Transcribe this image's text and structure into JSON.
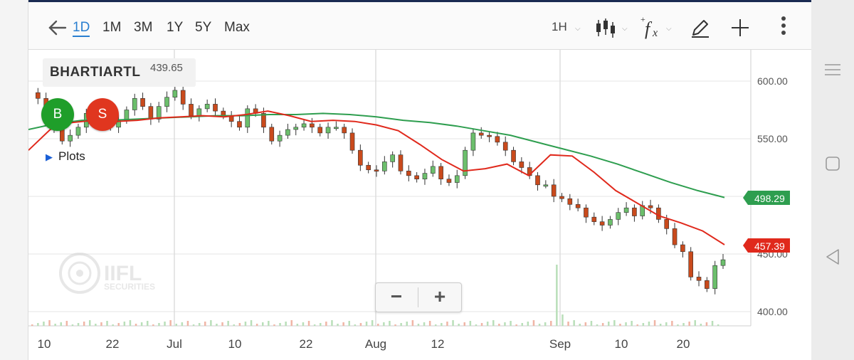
{
  "toolbar": {
    "ranges": [
      "1D",
      "1M",
      "3M",
      "1Y",
      "5Y",
      "Max"
    ],
    "active_range": "1D",
    "interval": "1H"
  },
  "ticker": {
    "symbol": "BHARTIARTL",
    "price": "439.65"
  },
  "buttons": {
    "buy": "B",
    "sell": "S"
  },
  "plots_label": "Plots",
  "watermark": {
    "brand": "IIFL",
    "sub": "SECURITIES"
  },
  "zoom": {
    "minus": "−",
    "plus": "+"
  },
  "colors": {
    "green": "#2e9e4f",
    "red": "#e0291c",
    "accent": "#2a7fd0"
  },
  "chart_data": {
    "type": "line",
    "y_ticks": [
      "600.00",
      "550.00",
      "450.00",
      "400.00"
    ],
    "ylim": [
      395,
      615
    ],
    "x_ticks": [
      "10",
      "22",
      "Jul",
      "10",
      "22",
      "Aug",
      "12",
      "Sep",
      "10",
      "20"
    ],
    "series": [
      {
        "name": "",
        "kind": "candles",
        "values": [
          590,
          585,
          575,
          560,
          548,
          553,
          560,
          572,
          578,
          568,
          560,
          566,
          575,
          585,
          578,
          567,
          578,
          586,
          592,
          580,
          570,
          576,
          580,
          574,
          570,
          565,
          560,
          576,
          572,
          560,
          548,
          553,
          558,
          560,
          563,
          560,
          555,
          560,
          560,
          555,
          540,
          527,
          523,
          522,
          530,
          536,
          522,
          518,
          515,
          520,
          526,
          515,
          512,
          518,
          540,
          555,
          553,
          552,
          547,
          540,
          530,
          525,
          518,
          510,
          510,
          500,
          498,
          493,
          490,
          482,
          478,
          475,
          480,
          486,
          490,
          483,
          492,
          490,
          480,
          472,
          458,
          452,
          430,
          427,
          420,
          440,
          445
        ]
      },
      {
        "name": "",
        "kind": "sma-slow",
        "values": [
          558,
          563,
          566,
          566,
          567,
          568,
          569,
          570,
          570,
          571,
          571,
          572,
          571,
          569,
          566,
          564,
          561,
          557,
          553,
          547,
          541,
          535,
          528,
          520,
          512,
          505,
          499
        ]
      },
      {
        "name": "",
        "kind": "sma-fast",
        "values": [
          540,
          558,
          564,
          566,
          565,
          566,
          568,
          569,
          570,
          569,
          571,
          574,
          570,
          565,
          566,
          565,
          562,
          557,
          545,
          532,
          522,
          524,
          528,
          518,
          536,
          535,
          521,
          505,
          494,
          483,
          477,
          470,
          458
        ]
      },
      {
        "name": "",
        "kind": "volume",
        "values": []
      }
    ],
    "last_values": {
      "sma_slow": "498.29",
      "sma_fast": "457.39"
    }
  }
}
